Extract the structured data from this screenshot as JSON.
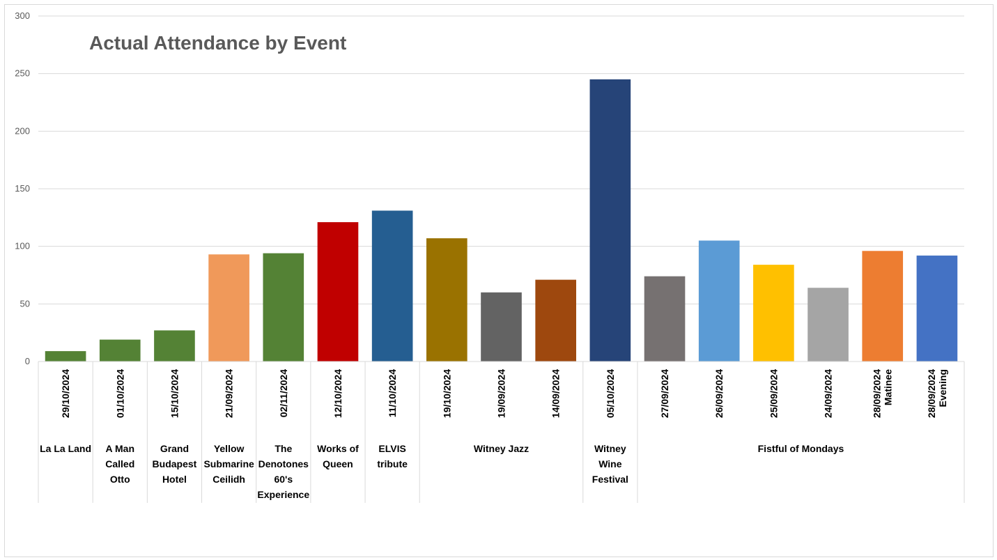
{
  "chart_data": {
    "type": "bar",
    "title": "Actual Attendance by Event",
    "ylim": [
      0,
      300
    ],
    "yticks": [
      0,
      50,
      100,
      150,
      200,
      250,
      300
    ],
    "grid": true,
    "categories": [
      "29/10/2024",
      "01/10/2024",
      "15/10/2024",
      "21/09/2024",
      "02/11/2024",
      "12/10/2024",
      "11/10/2024",
      "19/10/2024",
      "19/09/2024",
      "14/09/2024",
      "05/10/2024",
      "27/09/2024",
      "26/09/2024",
      "25/09/2024",
      "24/09/2024",
      [
        "28/09/2024",
        "Matinee"
      ],
      [
        "28/09/2024",
        "Evening"
      ]
    ],
    "values": [
      9,
      19,
      27,
      93,
      94,
      121,
      131,
      107,
      60,
      71,
      245,
      74,
      105,
      84,
      64,
      96,
      92
    ],
    "colors": [
      "#548235",
      "#548235",
      "#548235",
      "#F0995A",
      "#548235",
      "#C00000",
      "#255E91",
      "#9A7200",
      "#636363",
      "#9E480E",
      "#264478",
      "#767171",
      "#5B9BD5",
      "#FFC000",
      "#A5A5A5",
      "#ED7D31",
      "#4472C4"
    ],
    "groups": [
      {
        "lines": [
          "La La Land"
        ],
        "span": [
          0,
          0
        ]
      },
      {
        "lines": [
          "A Man",
          "Called",
          "Otto"
        ],
        "span": [
          1,
          1
        ]
      },
      {
        "lines": [
          "Grand",
          "Budapest",
          "Hotel"
        ],
        "span": [
          2,
          2
        ]
      },
      {
        "lines": [
          "Yellow",
          "Submarine",
          "Ceilidh"
        ],
        "span": [
          3,
          3
        ]
      },
      {
        "lines": [
          "The",
          "Denotones",
          "60's",
          "Experience"
        ],
        "span": [
          4,
          4
        ]
      },
      {
        "lines": [
          "Works of",
          "Queen"
        ],
        "span": [
          5,
          5
        ]
      },
      {
        "lines": [
          "ELVIS",
          "tribute"
        ],
        "span": [
          6,
          6
        ]
      },
      {
        "lines": [
          "Witney Jazz"
        ],
        "span": [
          7,
          9
        ]
      },
      {
        "lines": [
          "Witney",
          "Wine",
          "Festival"
        ],
        "span": [
          10,
          10
        ]
      },
      {
        "lines": [
          "Fistful of Mondays"
        ],
        "span": [
          11,
          16
        ]
      }
    ]
  }
}
